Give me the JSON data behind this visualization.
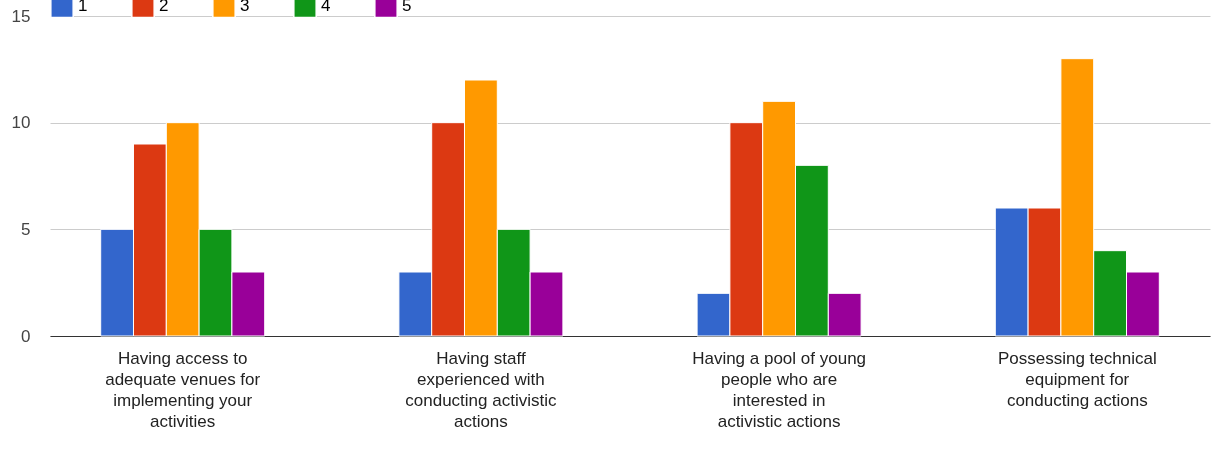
{
  "chart_data": {
    "type": "bar",
    "categories": [
      "Having access to adequate venues for implementing your activities",
      "Having staff experienced with conducting activistic actions",
      "Having a pool of young people who are interested in activistic actions",
      "Possessing technical equipment for conducting actions"
    ],
    "series": [
      {
        "name": "1",
        "color": "#3366cc",
        "values": [
          5,
          3,
          2,
          6
        ]
      },
      {
        "name": "2",
        "color": "#dc3912",
        "values": [
          9,
          10,
          10,
          6
        ]
      },
      {
        "name": "3",
        "color": "#ff9900",
        "values": [
          10,
          12,
          11,
          13
        ]
      },
      {
        "name": "4",
        "color": "#109618",
        "values": [
          5,
          5,
          8,
          4
        ]
      },
      {
        "name": "5",
        "color": "#990099",
        "values": [
          3,
          3,
          2,
          3
        ]
      }
    ],
    "ylim": [
      0,
      15
    ],
    "yticks": [
      0,
      5,
      10,
      15
    ],
    "grid": "y",
    "legend": "top left"
  }
}
